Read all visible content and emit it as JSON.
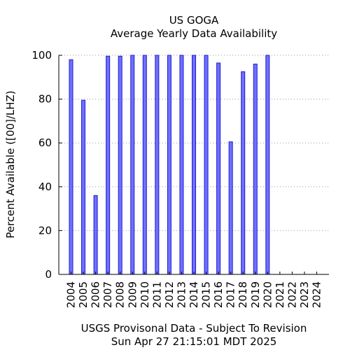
{
  "chart_data": {
    "type": "bar",
    "title": "US GOGA",
    "subtitle": "Average Yearly Data Availability",
    "xlabel": "",
    "ylabel": "Percent Available ([00]/LHZ)",
    "ylim": [
      0,
      100
    ],
    "yticks": [
      0,
      20,
      40,
      60,
      80,
      100
    ],
    "grid": true,
    "categories": [
      "2004",
      "2005",
      "2006",
      "2007",
      "2008",
      "2009",
      "2010",
      "2011",
      "2012",
      "2013",
      "2014",
      "2015",
      "2016",
      "2017",
      "2018",
      "2019",
      "2020",
      "2021",
      "2022",
      "2023",
      "2024"
    ],
    "values": [
      98,
      79.5,
      36,
      99.6,
      99.6,
      100,
      100,
      100,
      100,
      100,
      100,
      100,
      96.5,
      60.5,
      92.5,
      96,
      100,
      0,
      0,
      0,
      0
    ],
    "colors": {
      "bar_fill": "#7070ff",
      "bar_stroke": "#1c1cd0",
      "grid": "#9a9a9a",
      "axis": "#000000"
    }
  },
  "footer": {
    "line1": "USGS Provisonal Data - Subject To Revision",
    "line2": "Sun Apr 27 21:15:01 MDT 2025"
  }
}
